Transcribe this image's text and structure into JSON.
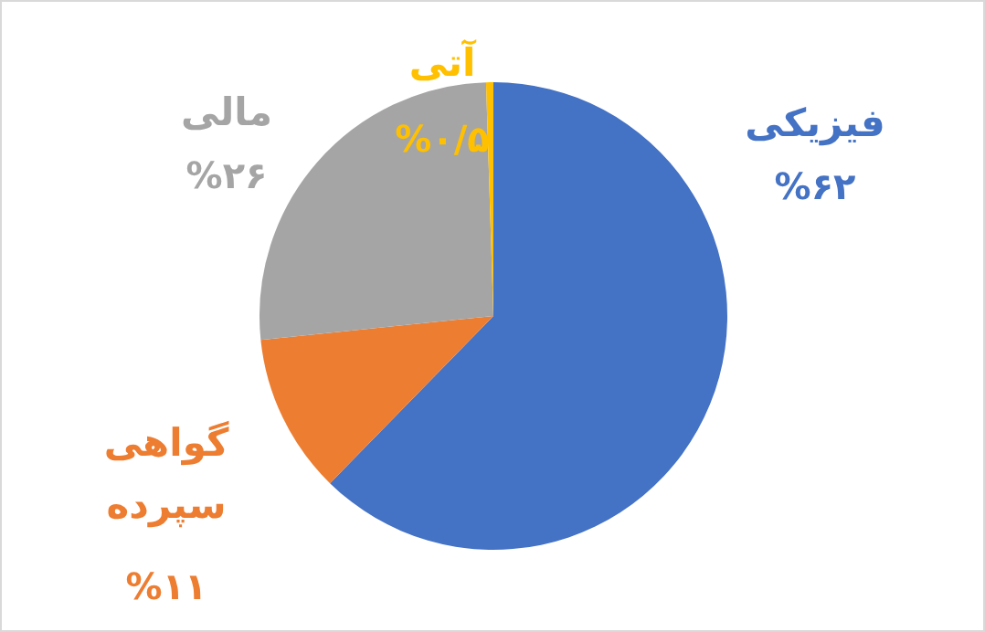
{
  "chart_data": {
    "type": "pie",
    "categories": [
      "فیزیکی",
      "گواهی سپرده",
      "مالی",
      "آتی"
    ],
    "values": [
      62,
      11,
      26,
      0.5
    ],
    "colors": [
      "#4472c4",
      "#ed7d31",
      "#a5a5a5",
      "#ffc000"
    ],
    "value_labels": [
      "%۶۲",
      "%۱۱",
      "%۲۶",
      "%۰/۵"
    ],
    "legend": false
  }
}
